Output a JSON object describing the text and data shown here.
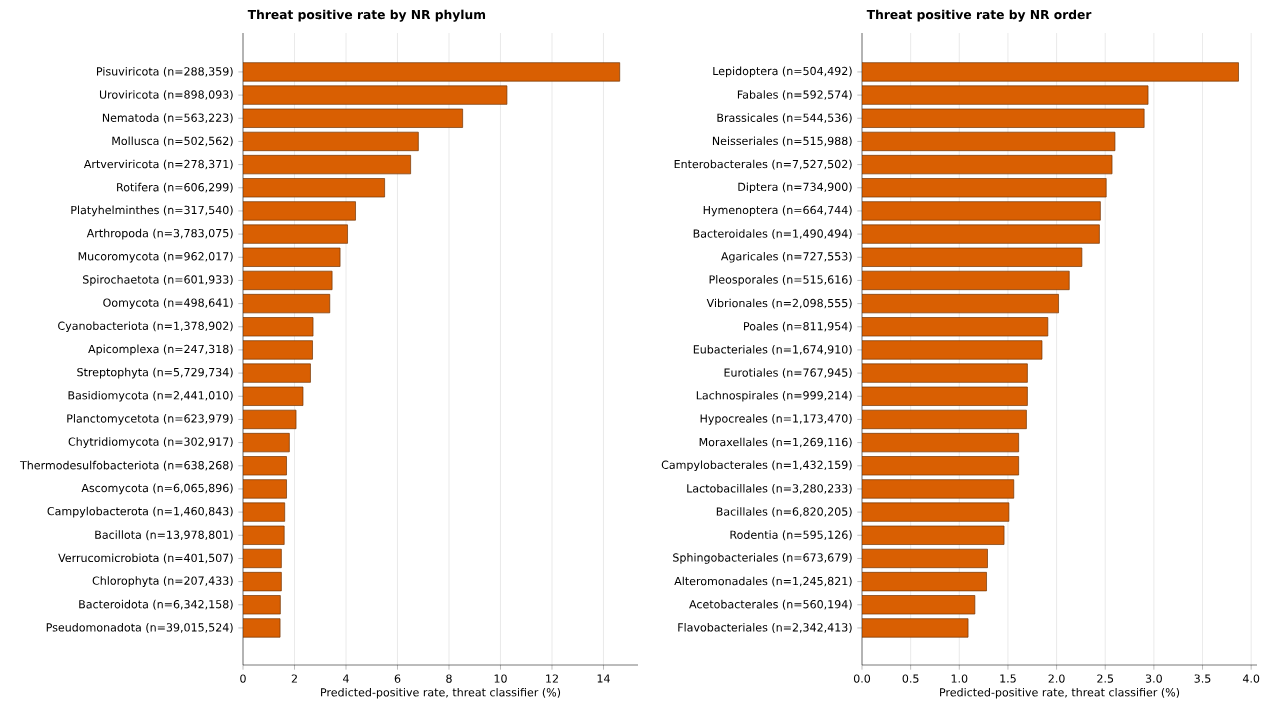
{
  "chart_data": [
    {
      "type": "bar",
      "orientation": "horizontal",
      "title": "Threat positive rate by NR phylum",
      "xlabel": "Predicted-positive rate, threat classifier (%)",
      "categories": [
        "Pisuviricota  (n=288,359)",
        "Uroviricota  (n=898,093)",
        "Nematoda  (n=563,223)",
        "Mollusca  (n=502,562)",
        "Artverviricota  (n=278,371)",
        "Rotifera  (n=606,299)",
        "Platyhelminthes  (n=317,540)",
        "Arthropoda  (n=3,783,075)",
        "Mucoromycota  (n=962,017)",
        "Spirochaetota  (n=601,933)",
        "Oomycota  (n=498,641)",
        "Cyanobacteriota  (n=1,378,902)",
        "Apicomplexa  (n=247,318)",
        "Streptophyta  (n=5,729,734)",
        "Basidiomycota  (n=2,441,010)",
        "Planctomycetota  (n=623,979)",
        "Chytridiomycota  (n=302,917)",
        "Thermodesulfobacteriota  (n=638,268)",
        "Ascomycota  (n=6,065,896)",
        "Campylobacterota  (n=1,460,843)",
        "Bacillota  (n=13,978,801)",
        "Verrucomicrobiota  (n=401,507)",
        "Chlorophyta  (n=207,433)",
        "Bacteroidota  (n=6,342,158)",
        "Pseudomonadota  (n=39,015,524)"
      ],
      "values": [
        14.63,
        10.25,
        8.53,
        6.81,
        6.51,
        5.5,
        4.37,
        4.06,
        3.77,
        3.46,
        3.37,
        2.72,
        2.7,
        2.62,
        2.33,
        2.06,
        1.8,
        1.69,
        1.69,
        1.62,
        1.6,
        1.49,
        1.49,
        1.45,
        1.44
      ],
      "color": "#d95f02",
      "xlim": [
        0,
        15.34
      ],
      "xticks": [
        0,
        2,
        4,
        6,
        8,
        10,
        12,
        14
      ],
      "grid": "x"
    },
    {
      "type": "bar",
      "orientation": "horizontal",
      "title": "Threat positive rate by NR order",
      "xlabel": "Predicted-positive rate, threat classifier (%)",
      "categories": [
        "Lepidoptera  (n=504,492)",
        "Fabales  (n=592,574)",
        "Brassicales  (n=544,536)",
        "Neisseriales  (n=515,988)",
        "Enterobacterales  (n=7,527,502)",
        "Diptera  (n=734,900)",
        "Hymenoptera  (n=664,744)",
        "Bacteroidales  (n=1,490,494)",
        "Agaricales  (n=727,553)",
        "Pleosporales  (n=515,616)",
        "Vibrionales  (n=2,098,555)",
        "Poales  (n=811,954)",
        "Eubacteriales  (n=1,674,910)",
        "Eurotiales  (n=767,945)",
        "Lachnospirales  (n=999,214)",
        "Hypocreales  (n=1,173,470)",
        "Moraxellales  (n=1,269,116)",
        "Campylobacterales  (n=1,432,159)",
        "Lactobacillales  (n=3,280,233)",
        "Bacillales  (n=6,820,205)",
        "Rodentia  (n=595,126)",
        "Sphingobacteriales  (n=673,679)",
        "Alteromonadales  (n=1,245,821)",
        "Acetobacterales  (n=560,194)",
        "Flavobacteriales  (n=2,342,413)"
      ],
      "values": [
        3.87,
        2.94,
        2.9,
        2.6,
        2.57,
        2.51,
        2.45,
        2.44,
        2.26,
        2.13,
        2.02,
        1.91,
        1.85,
        1.7,
        1.7,
        1.69,
        1.61,
        1.61,
        1.56,
        1.51,
        1.46,
        1.29,
        1.28,
        1.16,
        1.09
      ],
      "color": "#d95f02",
      "xlim": [
        0,
        4.06
      ],
      "xticks": [
        {
          "value": 0,
          "label": "0.0"
        },
        {
          "value": 0.5,
          "label": "0.5"
        },
        {
          "value": 1,
          "label": "1.0"
        },
        {
          "value": 1.5,
          "label": "1.5"
        },
        {
          "value": 2,
          "label": "2.0"
        },
        {
          "value": 2.5,
          "label": "2.5"
        },
        {
          "value": 3,
          "label": "3.0"
        },
        {
          "value": 3.5,
          "label": "3.5"
        },
        {
          "value": 4,
          "label": "4.0"
        }
      ],
      "grid": "x"
    }
  ]
}
